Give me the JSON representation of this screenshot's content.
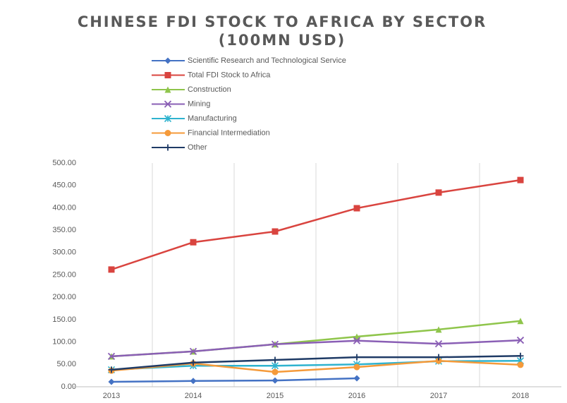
{
  "chart_data": {
    "type": "line",
    "title": "CHINESE FDI STOCK TO AFRICA BY SECTOR (100MN USD)",
    "categories": [
      "2013",
      "2014",
      "2015",
      "2016",
      "2017",
      "2018"
    ],
    "series": [
      {
        "name": "Scientific Research and Technological Service",
        "color": "#4472c4",
        "marker": "diamond",
        "values": [
          11,
          13,
          14,
          19,
          null,
          null
        ]
      },
      {
        "name": "Total FDI Stock to Africa",
        "color": "#d9443f",
        "marker": "square",
        "values": [
          262,
          323,
          347,
          399,
          434,
          462
        ]
      },
      {
        "name": "Construction",
        "color": "#8fc54b",
        "marker": "triangle",
        "values": [
          68,
          79,
          95,
          112,
          128,
          147
        ]
      },
      {
        "name": "Mining",
        "color": "#8a5fb5",
        "marker": "x",
        "values": [
          68,
          79,
          95,
          103,
          96,
          104
        ]
      },
      {
        "name": "Manufacturing",
        "color": "#2fb3cf",
        "marker": "star",
        "values": [
          38,
          47,
          47,
          50,
          57,
          58
        ]
      },
      {
        "name": "Financial Intermediation",
        "color": "#f59a3a",
        "marker": "circle",
        "values": [
          36,
          52,
          33,
          44,
          58,
          49
        ]
      },
      {
        "name": "Other",
        "color": "#1f3b66",
        "marker": "plus",
        "values": [
          38,
          54,
          60,
          66,
          66,
          69
        ]
      }
    ],
    "ylim": [
      0,
      500
    ],
    "yticks": [
      {
        "value": 0,
        "label": "0.00"
      },
      {
        "value": 50,
        "label": "50.00"
      },
      {
        "value": 100,
        "label": "100.00"
      },
      {
        "value": 150,
        "label": "150.00"
      },
      {
        "value": 200,
        "label": "200.00"
      },
      {
        "value": 250,
        "label": "250.00"
      },
      {
        "value": 300,
        "label": "300.00"
      },
      {
        "value": 350,
        "label": "350.00"
      },
      {
        "value": 400,
        "label": "400.00"
      },
      {
        "value": 450,
        "label": "450.00"
      },
      {
        "value": 500,
        "label": "500.00"
      }
    ],
    "grid": "x",
    "legend": "top"
  }
}
